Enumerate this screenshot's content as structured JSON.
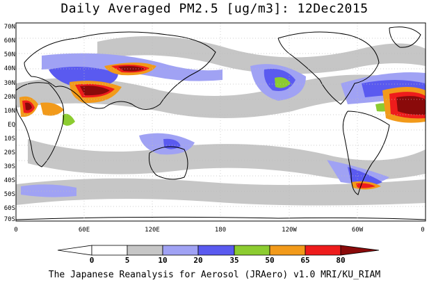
{
  "title": "Daily Averaged PM2.5 [ug/m3]: 12Dec2015",
  "footer": "The Japanese Reanalysis for Aerosol (JRAero) v1.0 MRI/KU_RIAM",
  "lat_ticks": [
    "70N",
    "60N",
    "50N",
    "40N",
    "30N",
    "20N",
    "10N",
    "EQ",
    "10S",
    "20S",
    "30S",
    "40S",
    "50S",
    "60S",
    "70S"
  ],
  "lon_ticks": [
    "0",
    "60E",
    "120E",
    "180",
    "120W",
    "60W",
    "0"
  ],
  "colorbar": {
    "levels": [
      "0",
      "5",
      "10",
      "20",
      "35",
      "50",
      "65",
      "80"
    ],
    "colors": [
      "#ffffff",
      "#c6c6c6",
      "#a0a2f4",
      "#5a5af0",
      "#8ccc30",
      "#f29a1a",
      "#ee1c1c",
      "#8a0a0a"
    ]
  },
  "map_colors": {
    "land_outline": "#000000",
    "grid": "#bdbdbd",
    "ocean": "#ffffff"
  }
}
